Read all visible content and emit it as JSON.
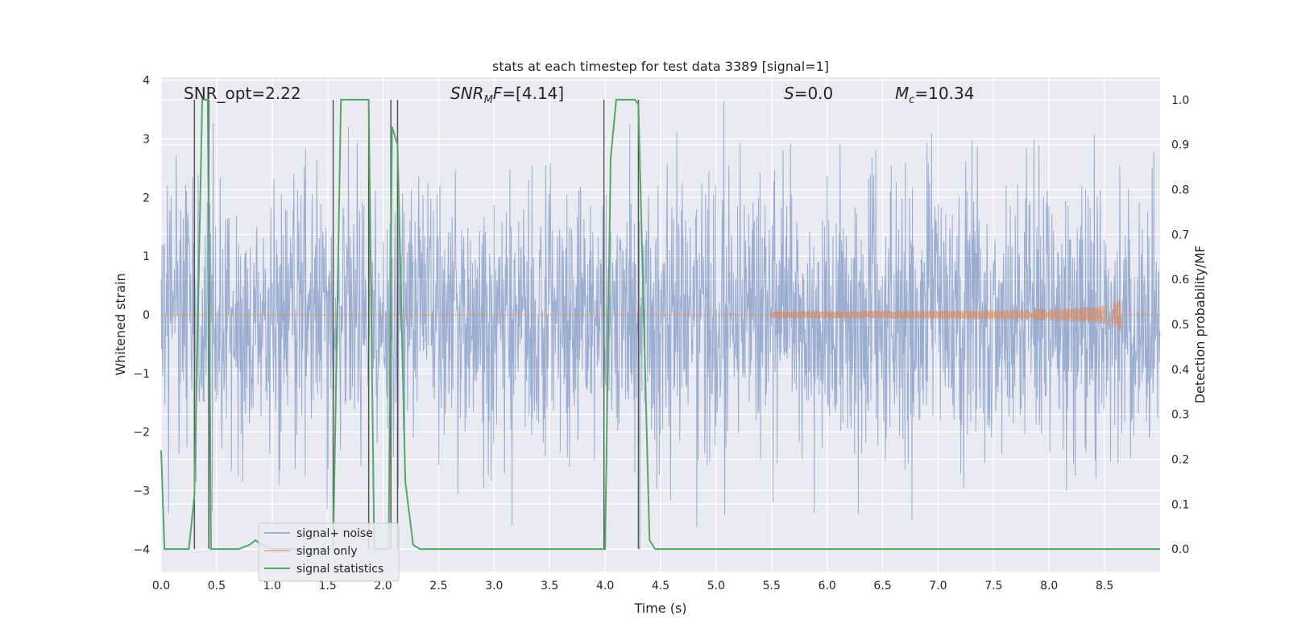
{
  "chart_data": {
    "type": "line",
    "title": "stats at each timestep for test data 3389 [signal=1]",
    "xlabel": "Time (s)",
    "ylabel_left": "Whitened strain",
    "ylabel_right": "Detection probability/MF",
    "xlim": [
      0.0,
      9.0
    ],
    "ylim_left": [
      -4.38,
      4.05
    ],
    "ylim_right": [
      -0.05,
      1.05
    ],
    "x_ticks": [
      "0.0",
      "0.5",
      "1.0",
      "1.5",
      "2.0",
      "2.5",
      "3.0",
      "3.5",
      "4.0",
      "4.5",
      "5.0",
      "5.5",
      "6.0",
      "6.5",
      "7.0",
      "7.5",
      "8.0",
      "8.5"
    ],
    "y_left_ticks": [
      "4",
      "3",
      "2",
      "1",
      "0",
      "−1",
      "−2",
      "−3",
      "−4"
    ],
    "y_right_ticks": [
      "1.0",
      "0.9",
      "0.8",
      "0.7",
      "0.6",
      "0.5",
      "0.4",
      "0.3",
      "0.2",
      "0.1",
      "0.0"
    ],
    "grid": true,
    "legend_location": "lower-left",
    "annotations": [
      {
        "text": "SNR_opt=2.22",
        "x": 0.2
      },
      {
        "text": "SNR_MF=[4.14]",
        "x": 2.6
      },
      {
        "text": "S=0.0",
        "x": 5.6
      },
      {
        "text": "M_c=10.34",
        "x": 6.6
      }
    ],
    "series": [
      {
        "name": "signal+ noise",
        "color": "#4c72b0",
        "axis": "left",
        "description_values": {
          "typical_range": [
            -2.0,
            2.0
          ],
          "peak_max": 3.7,
          "peak_min": -4.0
        }
      },
      {
        "name": "signal only",
        "color": "#dd8452",
        "axis": "left",
        "chirp_end_time": 8.65,
        "chirp_end_amplitude": 0.35
      },
      {
        "name": "signal statistics",
        "color": "#55a868",
        "axis": "right",
        "x": [
          0.0,
          0.03,
          0.1,
          0.2,
          0.25,
          0.3,
          0.37,
          0.42,
          0.45,
          0.5,
          0.55,
          0.6,
          0.7,
          0.8,
          0.85,
          0.9,
          1.0,
          1.1,
          1.2,
          1.3,
          1.4,
          1.5,
          1.55,
          1.62,
          1.7,
          1.8,
          1.87,
          1.92,
          2.0,
          2.05,
          2.08,
          2.13,
          2.2,
          2.27,
          2.33,
          2.4,
          2.5,
          3.0,
          3.5,
          4.0,
          4.05,
          4.1,
          4.2,
          4.27,
          4.3,
          4.35,
          4.4,
          4.45,
          4.5,
          4.8,
          5.0,
          6.0,
          7.0,
          8.0,
          9.0
        ],
        "y": [
          0.22,
          0.0,
          0.0,
          0.0,
          0.0,
          0.12,
          1.0,
          1.0,
          0.0,
          0.0,
          0.0,
          0.0,
          0.0,
          0.01,
          0.02,
          0.01,
          0.0,
          0.0,
          0.0,
          0.0,
          0.0,
          0.0,
          0.0,
          1.0,
          1.0,
          1.0,
          1.0,
          0.0,
          0.0,
          0.0,
          0.94,
          0.9,
          0.15,
          0.01,
          0.0,
          0.0,
          0.0,
          0.0,
          0.0,
          0.0,
          0.87,
          1.0,
          1.0,
          1.0,
          0.99,
          0.5,
          0.02,
          0.0,
          0.0,
          0.0,
          0.0,
          0.0,
          0.0,
          0.0,
          0.0
        ]
      }
    ],
    "vertical_lines_x": [
      0.3,
      0.43,
      1.55,
      1.87,
      2.07,
      2.13,
      3.99,
      4.3
    ]
  }
}
